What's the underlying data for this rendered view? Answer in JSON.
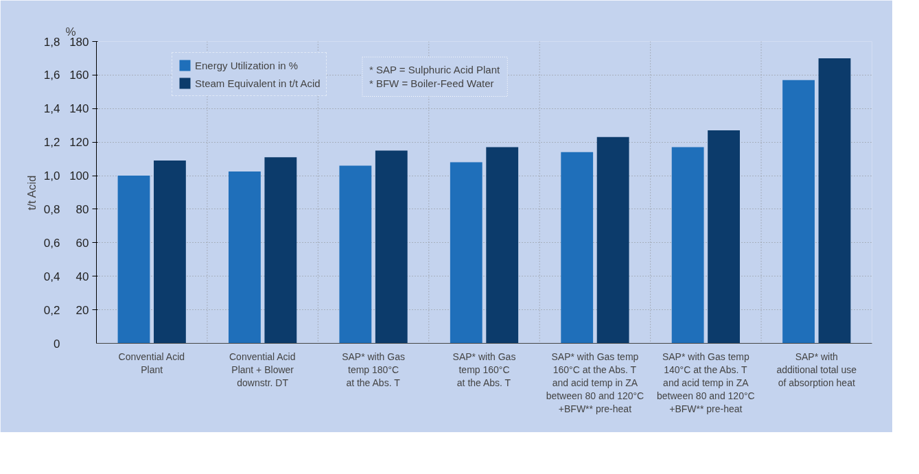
{
  "chart_data": {
    "type": "bar",
    "categories": [
      "Convential Acid\nPlant",
      "Convential Acid\nPlant + Blower\ndownstr. DT",
      "SAP* with Gas\ntemp 180°C\nat the Abs. T",
      "SAP* with Gas\ntemp 160°C\nat the Abs. T",
      "SAP* with Gas temp\n160°C at the Abs. T\nand acid temp in ZA\nbetween 80 and 120°C\n+BFW** pre-heat",
      "SAP* with Gas temp\n140°C at the Abs. T\nand acid temp in ZA\nbetween 80 and 120°C\n+BFW** pre-heat",
      "SAP* with\nadditional total use\nof absorption heat"
    ],
    "series": [
      {
        "name": "Energy Utilization in %",
        "color": "#1f6fba",
        "axis": "y2",
        "values": [
          100,
          102.5,
          106,
          108,
          114,
          117,
          157
        ]
      },
      {
        "name": "Steam Equivalent in t/t Acid",
        "color": "#0c3b6b",
        "values": [
          1.09,
          1.11,
          1.15,
          1.17,
          1.23,
          1.27,
          1.7
        ]
      }
    ],
    "ylabel": "t/t Acid",
    "y2label": "%",
    "ylim": [
      0,
      1.8
    ],
    "yticks": [
      0,
      {
        "value": 0.2,
        "label": "0,2"
      },
      {
        "value": 0.4,
        "label": "0,4"
      },
      {
        "value": 0.6,
        "label": "0,6"
      },
      {
        "value": 0.8,
        "label": "0,8"
      },
      {
        "value": 1.0,
        "label": "1,0"
      },
      {
        "value": 1.2,
        "label": "1,2"
      },
      {
        "value": 1.4,
        "label": "1,4"
      },
      {
        "value": 1.6,
        "label": "1,6"
      },
      {
        "value": 1.8,
        "label": "1,8"
      }
    ],
    "y2lim": [
      0,
      180
    ],
    "y2ticks": [
      20,
      40,
      60,
      80,
      100,
      120,
      140,
      160,
      180
    ],
    "annotations": [
      "* SAP = Sulphuric Acid Plant",
      "* BFW = Boiler-Feed Water"
    ],
    "grid": true,
    "legend": "top left"
  }
}
